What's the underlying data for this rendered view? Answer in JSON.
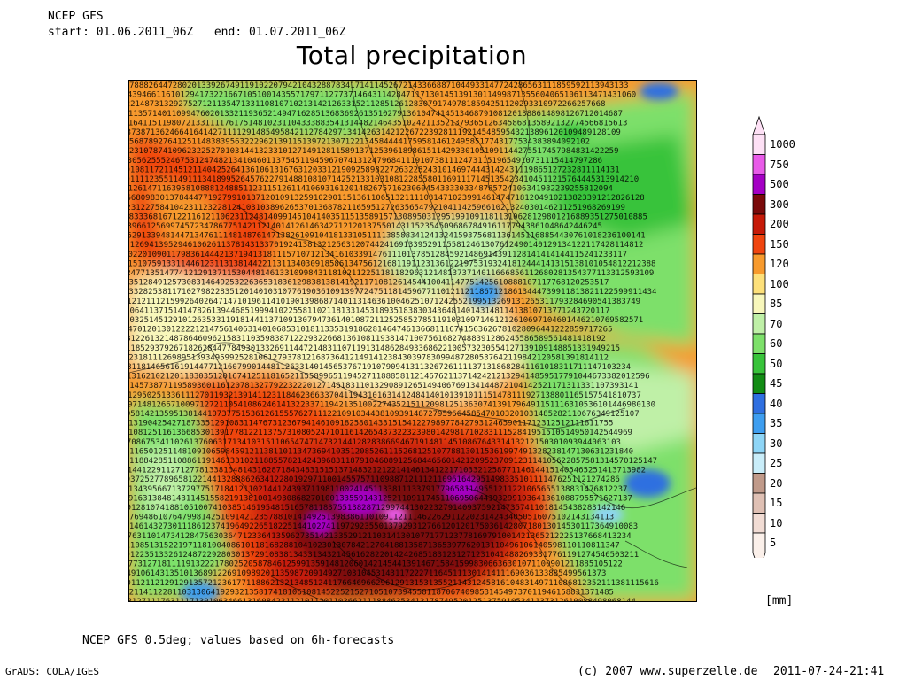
{
  "header": {
    "model": "NCEP GFS",
    "start_label": "start:",
    "start_value": "01.06.2011_06Z",
    "end_label": "end:",
    "end_value": "01.07.2011_06Z"
  },
  "title": "Total precipitation",
  "legend": {
    "unit": "[mm]",
    "levels": [
      {
        "label": "1000",
        "color": "#fde0f5"
      },
      {
        "label": "750",
        "color": "#e85be8"
      },
      {
        "label": "500",
        "color": "#a400c4"
      },
      {
        "label": "300",
        "color": "#7a0a0a"
      },
      {
        "label": "200",
        "color": "#c61a08"
      },
      {
        "label": "150",
        "color": "#f0450f"
      },
      {
        "label": "120",
        "color": "#f79a2d"
      },
      {
        "label": "100",
        "color": "#fde07a"
      },
      {
        "label": "85",
        "color": "#f8f7bb"
      },
      {
        "label": "70",
        "color": "#bff0a7"
      },
      {
        "label": "60",
        "color": "#7de06a"
      },
      {
        "label": "50",
        "color": "#38c33a"
      },
      {
        "label": "45",
        "color": "#128c14"
      },
      {
        "label": "40",
        "color": "#2f6fe0"
      },
      {
        "label": "35",
        "color": "#3e9ef0"
      },
      {
        "label": "30",
        "color": "#8ed5f6"
      },
      {
        "label": "25",
        "color": "#c9edf9"
      },
      {
        "label": "20",
        "color": "#c09a8a"
      },
      {
        "label": "15",
        "color": "#dfc0b4"
      },
      {
        "label": "10",
        "color": "#f1dcd4"
      },
      {
        "label": "5",
        "color": "#fbf0ea"
      }
    ]
  },
  "footer": {
    "note": "NCEP GFS 0.5deg; values based on 6h-forecasts",
    "software": "GrADS: COLA/IGES",
    "copyright": "(c) 2007 www.superzelle.de",
    "timestamp": "2011-07-24-21:41"
  }
}
